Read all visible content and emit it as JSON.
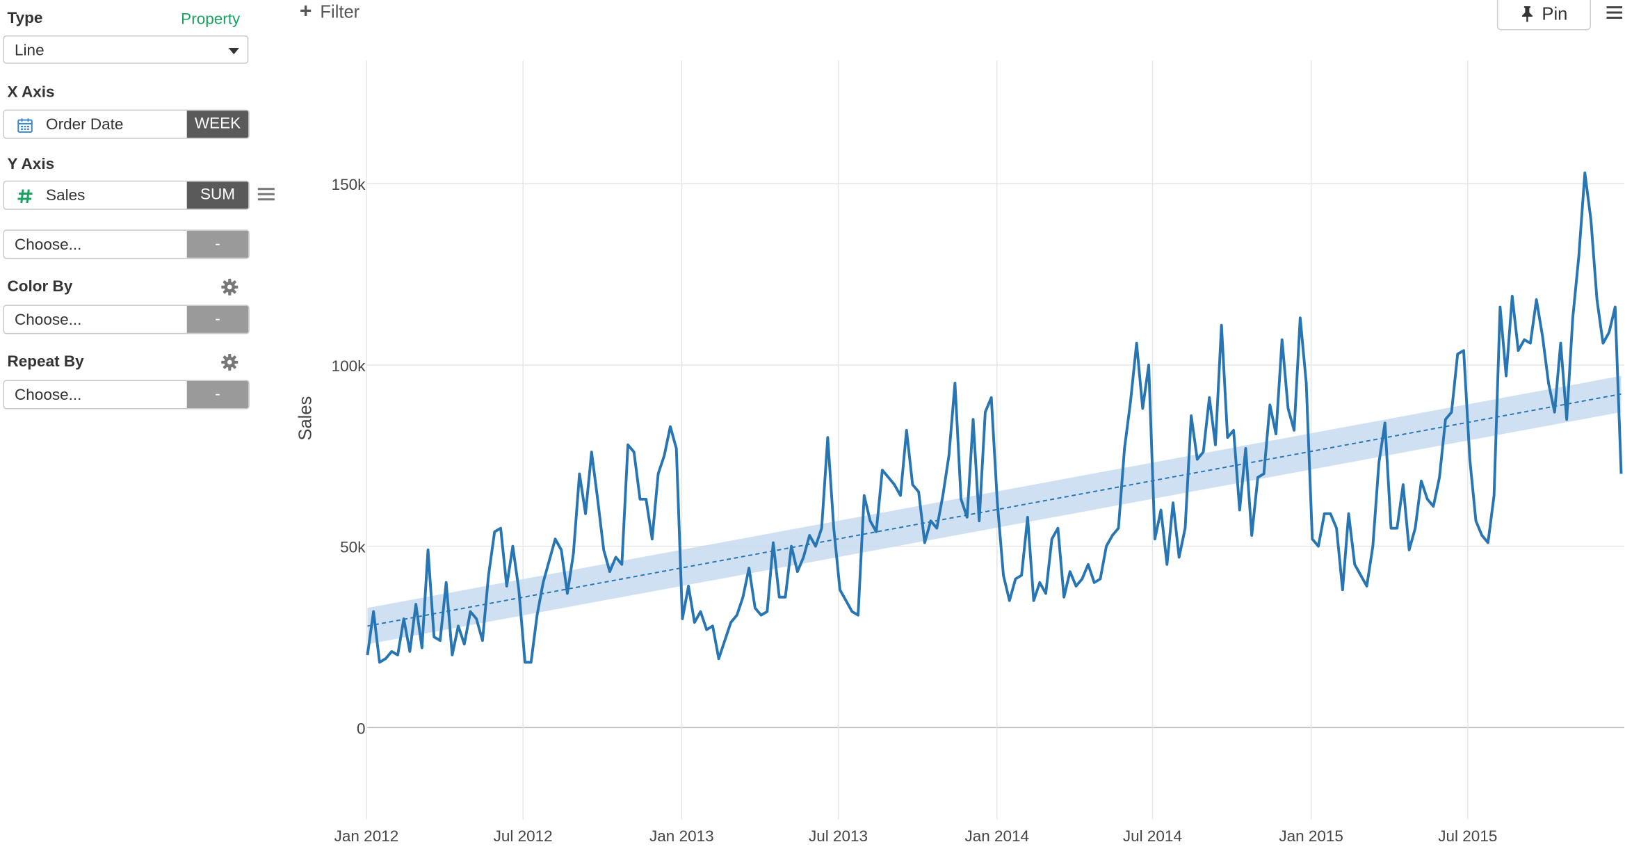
{
  "panel": {
    "type_label": "Type",
    "property_link": "Property",
    "type_value": "Line",
    "x_axis_label": "X Axis",
    "x_field": "Order Date",
    "x_agg": "WEEK",
    "y_axis_label": "Y Axis",
    "y_field": "Sales",
    "y_agg": "SUM",
    "y2_choose": "Choose...",
    "y2_agg": "-",
    "color_by_label": "Color By",
    "color_choose": "Choose...",
    "color_agg": "-",
    "repeat_by_label": "Repeat By",
    "repeat_choose": "Choose...",
    "repeat_agg": "-"
  },
  "toolbar": {
    "filter_label": "Filter",
    "pin_label": "Pin"
  },
  "colors": {
    "line": "#2776b3",
    "band": "#c6dbef",
    "trend": "#2776b3",
    "accent_green": "#1aa260",
    "grid": "#e6e6e6"
  },
  "chart_data": {
    "type": "line",
    "ylabel": "Sales",
    "xlabel": "",
    "x_ticks": [
      "Jan 2012",
      "Jul 2012",
      "Jan 2013",
      "Jul 2013",
      "Jan 2014",
      "Jul 2014",
      "Jan 2015",
      "Jul 2015"
    ],
    "y_ticks": [
      "0",
      "50k",
      "100k",
      "150k"
    ],
    "ylim": [
      -28000,
      165000
    ],
    "xlim": [
      "2012-01-01",
      "2015-12-30"
    ],
    "grid": true,
    "series": [
      {
        "values": [
          20000,
          32000,
          18000,
          19000,
          21000,
          20000,
          30000,
          21000,
          34000,
          22000,
          49000,
          25000,
          24000,
          40000,
          20000,
          28000,
          23000,
          32000,
          30000,
          24000,
          42000,
          54000,
          55000,
          39000,
          50000,
          38000,
          18000,
          18000,
          31000,
          40000,
          46000,
          52000,
          49000,
          37000,
          48000,
          70000,
          59000,
          76000,
          63000,
          49000,
          43000,
          47000,
          45000,
          78000,
          76000,
          63000,
          63000,
          52000,
          70000,
          75000,
          83000,
          77000,
          30000,
          39000,
          29000,
          32000,
          27000,
          28000,
          19000,
          24000,
          29000,
          31000,
          36000,
          44000,
          33000,
          31000,
          32000,
          51000,
          36000,
          36000,
          50000,
          43000,
          47000,
          53000,
          50000,
          55000,
          80000,
          55000,
          38000,
          35000,
          32000,
          31000,
          64000,
          57000,
          54000,
          71000,
          69000,
          67000,
          64000,
          82000,
          67000,
          65000,
          51000,
          57000,
          55000,
          64000,
          75000,
          95000,
          63000,
          58000,
          85000,
          57000,
          87000,
          91000,
          62000,
          42000,
          35000,
          41000,
          42000,
          58000,
          35000,
          40000,
          37000,
          52000,
          55000,
          36000,
          43000,
          39000,
          41000,
          45000,
          40000,
          41000,
          50000,
          53000,
          55000,
          77000,
          90000,
          106000,
          88000,
          100000,
          52000,
          60000,
          45000,
          62000,
          47000,
          55000,
          86000,
          74000,
          76000,
          91000,
          78000,
          111000,
          80000,
          82000,
          60000,
          77000,
          53000,
          69000,
          70000,
          89000,
          81000,
          107000,
          88000,
          82000,
          113000,
          95000,
          52000,
          50000,
          59000,
          59000,
          55000,
          38000,
          59000,
          45000,
          42000,
          39000,
          50000,
          73000,
          84000,
          55000,
          55000,
          67000,
          49000,
          55000,
          68000,
          63000,
          61000,
          69000,
          85000,
          87000,
          103000,
          104000,
          74000,
          57000,
          53000,
          51000,
          64000,
          116000,
          97000,
          119000,
          104000,
          107000,
          106000,
          118000,
          108000,
          95000,
          87000,
          106000,
          85000,
          113000,
          130000,
          153000,
          140000,
          118000,
          106000,
          109000,
          116000,
          70000
        ]
      }
    ],
    "trend": {
      "start": 28000,
      "end": 92000,
      "band": 5000
    }
  }
}
